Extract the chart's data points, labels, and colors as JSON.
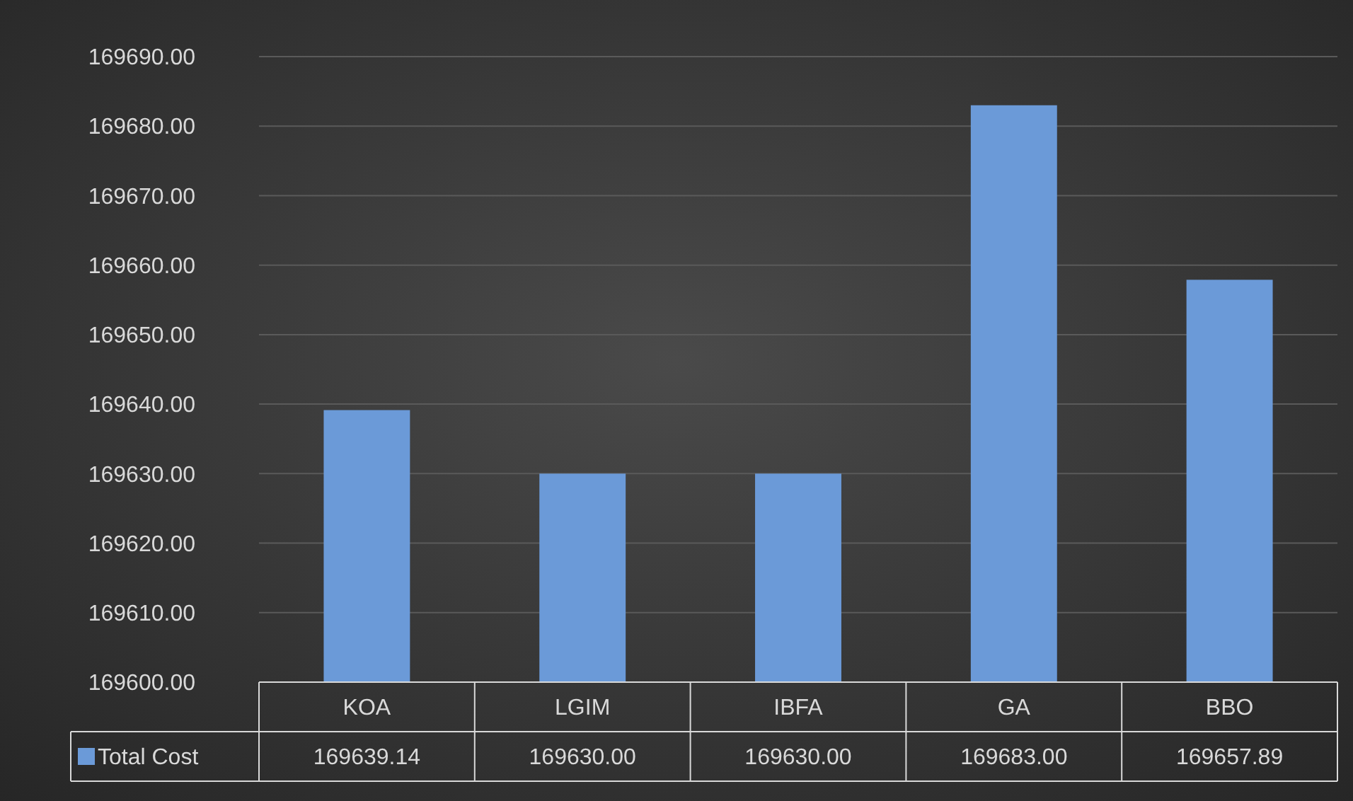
{
  "chart_data": {
    "type": "bar",
    "categories": [
      "KOA",
      "LGIM",
      "IBFA",
      "GA",
      "BBO"
    ],
    "series": [
      {
        "name": "Total Cost",
        "color": "#6b9ad8",
        "values": [
          169639.14,
          169630.0,
          169630.0,
          169683.0,
          169657.89
        ],
        "value_labels": [
          "169639.14",
          "169630.00",
          "169630.00",
          "169683.00",
          "169657.89"
        ]
      }
    ],
    "ylim": [
      169600,
      169690
    ],
    "yticks": [
      {
        "value": 169600,
        "label": "169600.00"
      },
      {
        "value": 169610,
        "label": "169610.00"
      },
      {
        "value": 169620,
        "label": "169620.00"
      },
      {
        "value": 169630,
        "label": "169630.00"
      },
      {
        "value": 169640,
        "label": "169640.00"
      },
      {
        "value": 169650,
        "label": "169650.00"
      },
      {
        "value": 169660,
        "label": "169660.00"
      },
      {
        "value": 169670,
        "label": "169670.00"
      },
      {
        "value": 169680,
        "label": "169680.00"
      },
      {
        "value": 169690,
        "label": "169690.00"
      }
    ],
    "grid": "y",
    "legend": "bottom left"
  }
}
